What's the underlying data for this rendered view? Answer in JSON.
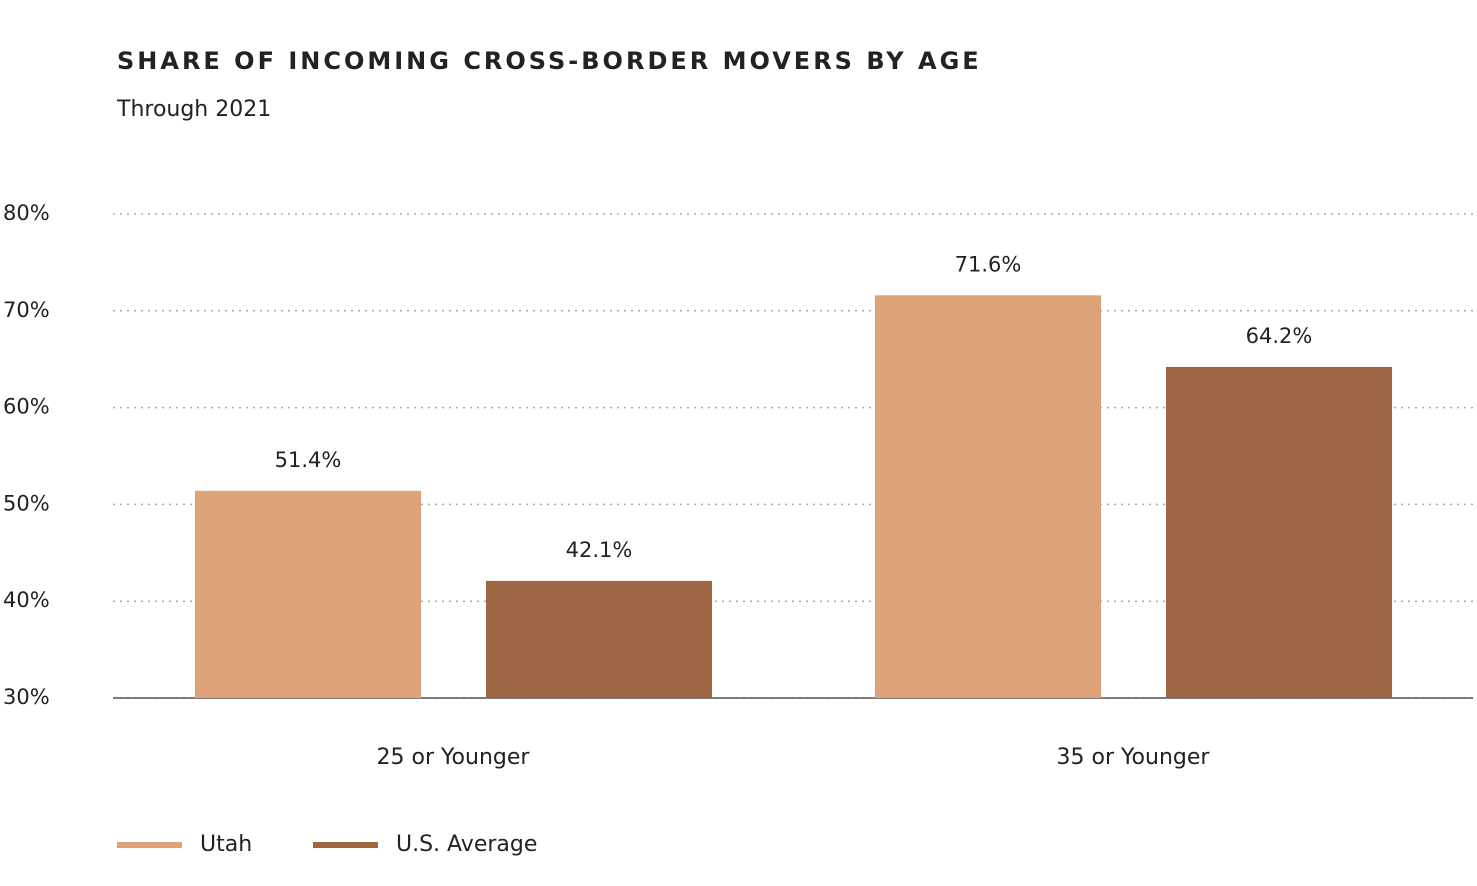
{
  "chart_data": {
    "type": "bar",
    "title": "SHARE OF INCOMING CROSS-BORDER MOVERS BY AGE",
    "subtitle": "Through 2021",
    "categories": [
      "25 or Younger",
      "35 or Younger"
    ],
    "series": [
      {
        "name": "Utah",
        "color": "#dea278",
        "values": [
          51.4,
          71.6
        ],
        "value_labels": [
          "51.4%",
          "71.6%"
        ]
      },
      {
        "name": "U.S. Average",
        "color": "#9e6642",
        "values": [
          42.1,
          64.2
        ],
        "value_labels": [
          "42.1%",
          "64.2%"
        ]
      }
    ],
    "ylim": [
      30,
      80
    ],
    "yticks": [
      {
        "value": 30,
        "label": "30%"
      },
      {
        "value": 40,
        "label": "40%"
      },
      {
        "value": 50,
        "label": "50%"
      },
      {
        "value": 60,
        "label": "60%"
      },
      {
        "value": 70,
        "label": "70%"
      },
      {
        "value": 80,
        "label": "80%"
      }
    ],
    "grid": true,
    "legend": "bottom-left"
  }
}
